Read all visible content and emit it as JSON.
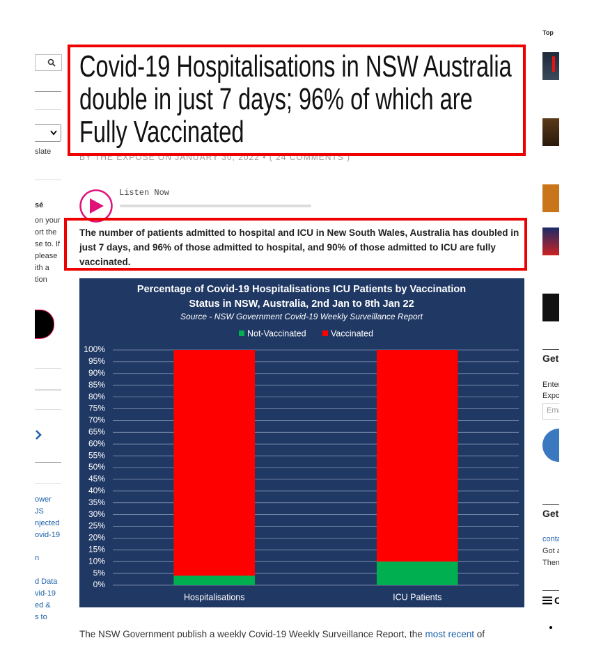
{
  "article": {
    "title": "Covid-19 Hospitalisations in NSW Australia double in just 7 days; 96% of which are Fully Vaccinated",
    "byline": "BY THE EXPOSÉ ON JANUARY 30, 2022 • ( 24 COMMENTS )",
    "audio_label": "Listen Now",
    "summary": "The number of patients admitted to hospital and ICU in New South Wales, Australia has doubled in just 7 days, and 96% of those admitted to hospital, and 90% of those admitted to ICU are fully vaccinated.",
    "body_start": "The NSW Government publish a weekly Covid-19 Weekly Surveillance Report, the",
    "body_link": "most recent",
    "body_end": "of"
  },
  "left_sidebar": {
    "translate": "slate",
    "heading": "sé",
    "paragraph": [
      "on your",
      "ort the",
      "se to. If",
      "please",
      "ith a",
      "tion"
    ],
    "links_a": [
      "ower",
      "JS",
      "njected",
      "ovid-19",
      "n"
    ],
    "links_b": [
      "d Data",
      "vid-19",
      "ed &",
      "s to"
    ]
  },
  "right_sidebar": {
    "top_label": "Top",
    "newsletter_heading": "Get N",
    "newsletter_text": [
      "Enter",
      "Expo"
    ],
    "email_placeholder": "Ema",
    "contact_heading": "Get i",
    "contact_text": [
      "conta",
      "Got a",
      "Them"
    ],
    "menu_label": "C"
  },
  "chart_data": {
    "type": "bar",
    "stacked": true,
    "title": [
      "Percentage of Covid-19  Hospitalisations ICU Patients by Vaccination",
      "Status in NSW, Australia, 2nd Jan to 8th Jan 22"
    ],
    "subtitle": "Source - NSW Government Covid-19 Weekly Surveillance Report",
    "categories": [
      "Hospitalisations",
      "ICU Patients"
    ],
    "series": [
      {
        "name": "Not-Vaccinated",
        "color": "#00b050",
        "values": [
          4,
          10
        ]
      },
      {
        "name": "Vaccinated",
        "color": "#ff0000",
        "values": [
          96,
          90
        ]
      }
    ],
    "ylim": [
      0,
      100
    ],
    "yticks": [
      {
        "value": 0,
        "label": "0%"
      },
      {
        "value": 5,
        "label": "5%"
      },
      {
        "value": 10,
        "label": "10%"
      },
      {
        "value": 15,
        "label": "15%"
      },
      {
        "value": 20,
        "label": "20%"
      },
      {
        "value": 25,
        "label": "25%"
      },
      {
        "value": 30,
        "label": "30%"
      },
      {
        "value": 35,
        "label": "35%"
      },
      {
        "value": 40,
        "label": "40%"
      },
      {
        "value": 45,
        "label": "45%"
      },
      {
        "value": 50,
        "label": "50%"
      },
      {
        "value": 55,
        "label": "55%"
      },
      {
        "value": 60,
        "label": "60%"
      },
      {
        "value": 65,
        "label": "65%"
      },
      {
        "value": 70,
        "label": "70%"
      },
      {
        "value": 75,
        "label": "75%"
      },
      {
        "value": 80,
        "label": "80%"
      },
      {
        "value": 85,
        "label": "85%"
      },
      {
        "value": 90,
        "label": "90%"
      },
      {
        "value": 95,
        "label": "95%"
      },
      {
        "value": 100,
        "label": "100%"
      }
    ],
    "grid": true,
    "legend": "top",
    "background": "#203864"
  }
}
